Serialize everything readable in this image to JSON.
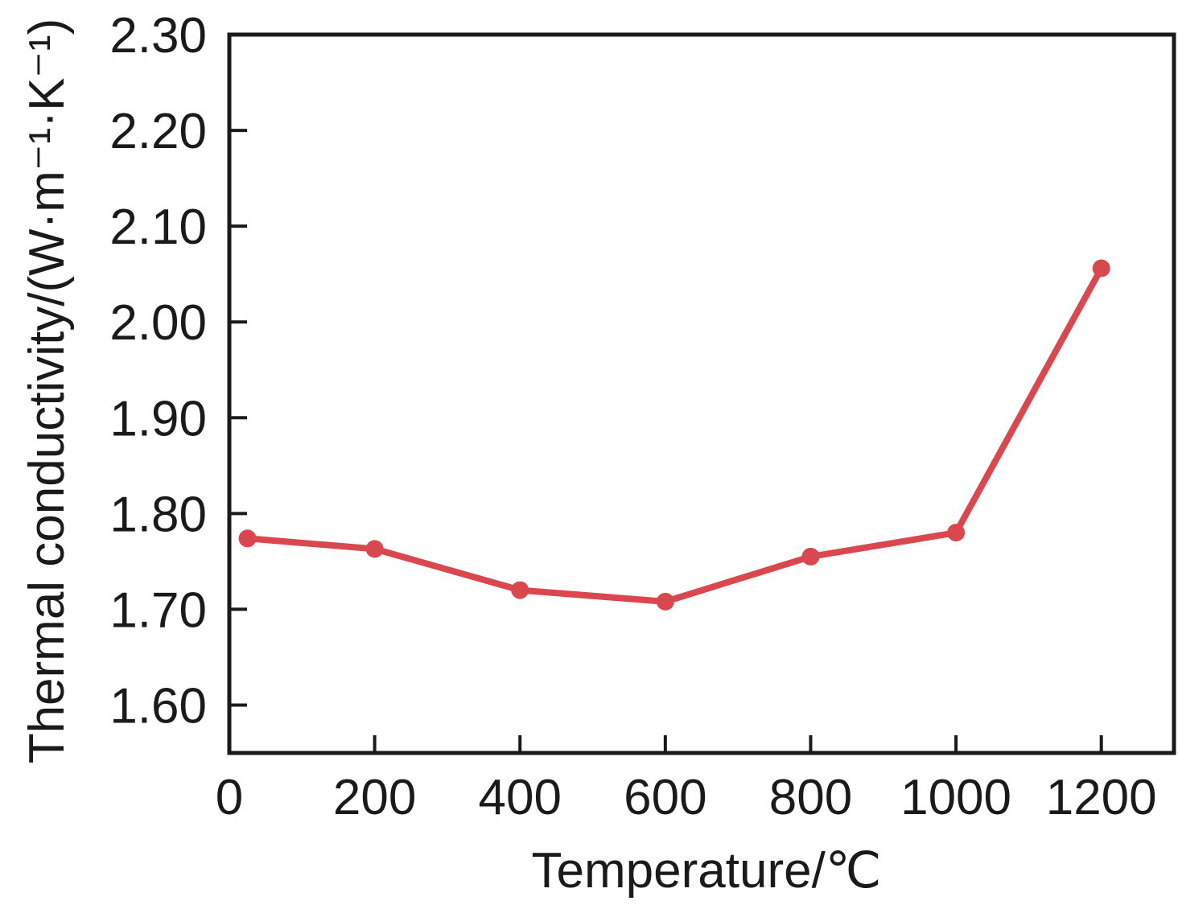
{
  "chart_data": {
    "type": "line",
    "title": "",
    "xlabel": "Temperature/℃",
    "ylabel": "Thermal conductivity/(W·m⁻¹·K⁻¹)",
    "xlim": [
      0,
      1300
    ],
    "ylim": [
      1.55,
      2.3
    ],
    "x_ticks": [
      0,
      200,
      400,
      600,
      800,
      1000,
      1200
    ],
    "x_tick_labels": [
      "0",
      "200",
      "400",
      "600",
      "800",
      "1000",
      "1200"
    ],
    "y_ticks": [
      1.6,
      1.7,
      1.8,
      1.9,
      2.0,
      2.1,
      2.2,
      2.3
    ],
    "y_tick_labels": [
      "1.60",
      "1.70",
      "1.80",
      "1.90",
      "2.00",
      "2.10",
      "2.20",
      "2.30"
    ],
    "grid": false,
    "series": [
      {
        "color": "#d9474f",
        "marker": "circle",
        "x": [
          25,
          200,
          400,
          600,
          800,
          1000,
          1200
        ],
        "y": [
          1.774,
          1.763,
          1.72,
          1.708,
          1.755,
          1.78,
          2.056
        ]
      }
    ]
  }
}
